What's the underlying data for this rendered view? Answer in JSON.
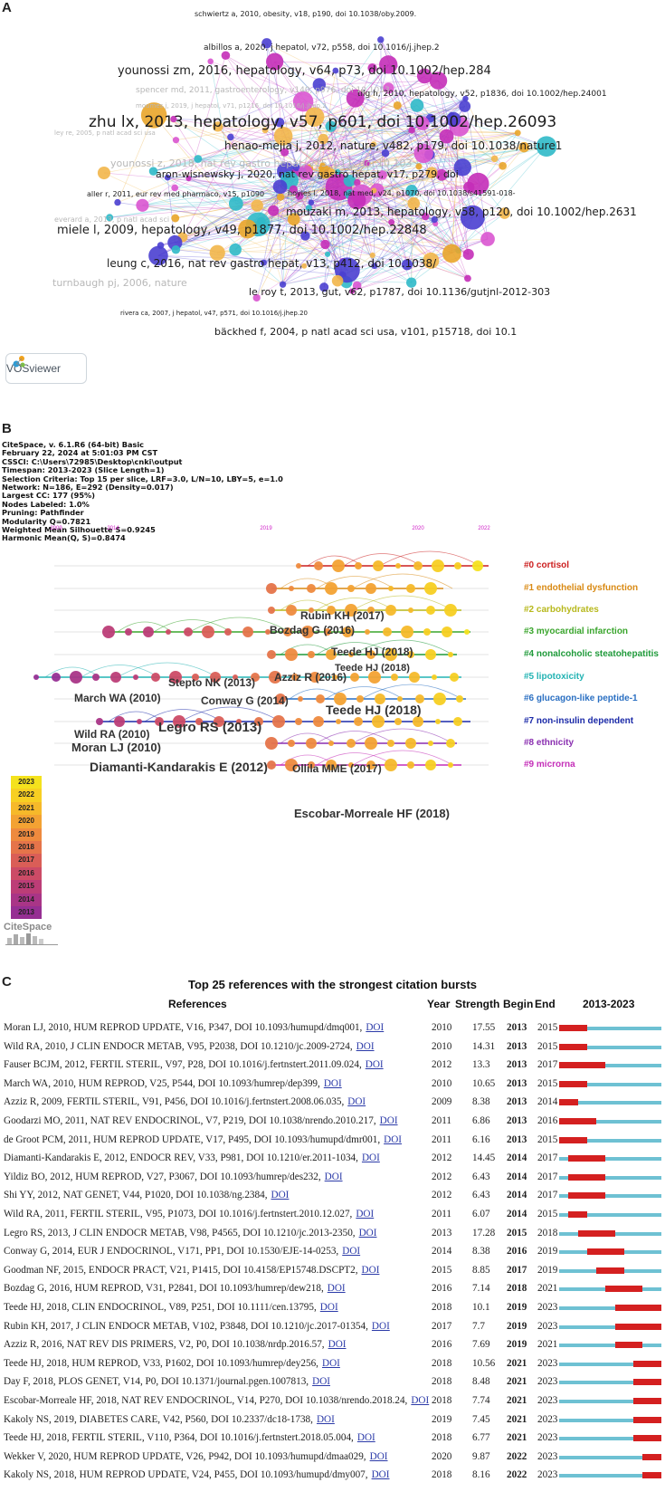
{
  "panel_a": {
    "letter": "A",
    "logo": "VOSviewer",
    "labels": [
      {
        "text": "schwiertz a, 2010, obesity, v18, p190, doi 10.1038/oby.2009.",
        "size": 8
      },
      {
        "text": "albillos a, 2020, j hepatol, v72, p558, doi 10.1016/j.jhep.2",
        "size": 9
      },
      {
        "text": "younossi zm, 2016, hepatology, v64, p73, doi 10.1002/hep.284",
        "size": 13
      },
      {
        "text": "tilg h, 2010, hepatology, v52, p1836, doi 10.1002/hep.24001",
        "size": 9
      },
      {
        "text": "spencer md, 2011, gastroenterology, v140, p976, doi 10.1053",
        "size": 9
      },
      {
        "text": "moumes j, 2019, j hepatol, v71, p1216, doi 10.1016/j.jhep.2",
        "size": 7
      },
      {
        "text": "zhu lx, 2013, hepatology, v57, p601, doi 10.1002/hep.26093",
        "size": 17
      },
      {
        "text": "ley re, 2005, p natl acad sci usa",
        "size": 7
      },
      {
        "text": "henao-mejia j, 2012, nature, v482, p179, doi 10.1038/nature1",
        "size": 12
      },
      {
        "text": "younossi z, 2018, nat rev gastro hepat, v15, p11, doi 10.103",
        "size": 11
      },
      {
        "text": "aron-wisnewsky j, 2020, nat rev gastro hepat, v17, p279, doi",
        "size": 11
      },
      {
        "text": "aller r, 2011, eur rev med pharmaco, v15, p1090",
        "size": 8
      },
      {
        "text": "hoyles l, 2018, nat med, v24, p1070, doi 10.1038/s41591-018-",
        "size": 8
      },
      {
        "text": "mouzaki m, 2013, hepatology, v58, p120, doi 10.1002/hep.2631",
        "size": 12
      },
      {
        "text": "everard a, 2013, p natl acad sci",
        "size": 8
      },
      {
        "text": "miele l, 2009, hepatology, v49, p1877, doi 10.1002/hep.22848",
        "size": 13
      },
      {
        "text": "leung c, 2016, nat rev gastro hepat, v13, p412, doi 10.1038/",
        "size": 12
      },
      {
        "text": "turnbaugh pj, 2006, nature",
        "size": 11
      },
      {
        "text": "le roy t, 2013, gut, v62, p1787, doi 10.1136/gutjnl-2012-303",
        "size": 11
      },
      {
        "text": "rivera ca, 2007, j hepatol, v47, p571, doi 10.1016/j.jhep.20",
        "size": 7
      },
      {
        "text": "bäckhed f, 2004, p natl acad sci usa, v101, p15718, doi 10.1",
        "size": 11
      }
    ]
  },
  "panel_b": {
    "letter": "B",
    "info_lines": [
      "CiteSpace, v. 6.1.R6 (64-bit) Basic",
      "February 22, 2024 at 5:01:03 PM CST",
      "CSSCI: C:\\Users\\72985\\Desktop\\cnki\\output",
      "Timespan: 2013-2023 (Slice Length=1)",
      "Selection Criteria: Top 15 per slice, LRF=3.0, L/N=10, LBY=5, e=1.0",
      "Network: N=186, E=292 (Density=0.017)",
      "Largest CC: 177 (95%)",
      "Nodes Labeled: 1.0%",
      "Pruning: Pathfinder",
      "Modularity Q=0.7821",
      "Weighted Mean Silhouette S=0.9245",
      "Harmonic Mean(Q, S)=0.8474"
    ],
    "axis_years": [
      "2009",
      "2014",
      "2019",
      "2020",
      "2022"
    ],
    "clusters": [
      {
        "label": "#0 cortisol",
        "color": "#cc1f1f"
      },
      {
        "label": "#1 endothelial dysfunction",
        "color": "#d98a14"
      },
      {
        "label": "#2 carbohydrates",
        "color": "#b7b81c"
      },
      {
        "label": "#3 myocardial infarction",
        "color": "#3aa52d"
      },
      {
        "label": "#4 nonalcoholic steatohepatitis",
        "color": "#1f9a3a"
      },
      {
        "label": "#5 lipotoxicity",
        "color": "#23b3b3"
      },
      {
        "label": "#6 glucagon-like peptide-1",
        "color": "#2a6fc2"
      },
      {
        "label": "#7 non-insulin    dependent",
        "color": "#1b2aa8"
      },
      {
        "label": "#8 ethnicity",
        "color": "#8a2fb0"
      },
      {
        "label": "#9 microrna",
        "color": "#c42eb8"
      }
    ],
    "node_labels": [
      {
        "text": "Rubin KH (2017)",
        "size": 12
      },
      {
        "text": "Bozdag G (2016)",
        "size": 12
      },
      {
        "text": "Teede HJ (2018)",
        "size": 12
      },
      {
        "text": "Teede HJ (2018)",
        "size": 11
      },
      {
        "text": "Azziz R (2016)",
        "size": 12
      },
      {
        "text": "Stepto NK (2013)",
        "size": 12
      },
      {
        "text": "March WA (2010)",
        "size": 12
      },
      {
        "text": "Conway G (2014)",
        "size": 12
      },
      {
        "text": "Teede HJ (2018)",
        "size": 14
      },
      {
        "text": "Wild RA (2010)",
        "size": 12
      },
      {
        "text": "Legro RS (2013)",
        "size": 15
      },
      {
        "text": "Moran LJ (2010)",
        "size": 13
      },
      {
        "text": "Diamanti-Kandarakis E (2012)",
        "size": 14
      },
      {
        "text": "Ollila MME (2017)",
        "size": 12
      },
      {
        "text": "Escobar-Morreale HF (2018)",
        "size": 13
      }
    ],
    "year_legend": [
      "2023",
      "2022",
      "2021",
      "2020",
      "2019",
      "2018",
      "2017",
      "2016",
      "2015",
      "2014",
      "2013"
    ],
    "year_colors": [
      "#f4e21d",
      "#f7cf22",
      "#f6b92a",
      "#f3a233",
      "#ee8a3e",
      "#e5744a",
      "#da5e57",
      "#cc4b66",
      "#bc3d77",
      "#a93587",
      "#962f93"
    ],
    "logo": "CiteSpace"
  },
  "panel_c": {
    "letter": "C",
    "title": "Top 25 references with the strongest citation bursts",
    "headers": {
      "references": "References",
      "year": "Year",
      "strength": "Strength",
      "begin": "Begin",
      "end": "End",
      "range": "2013-2023"
    },
    "range_start": 2013,
    "range_end": 2023,
    "doi_text": "DOI",
    "rows": [
      {
        "ref": "Moran LJ, 2010, HUM REPROD UPDATE, V16, P347, DOI 10.1093/humupd/dmq001,",
        "year": "2010",
        "strength": "17.55",
        "begin": "2013",
        "end": "2015"
      },
      {
        "ref": "Wild RA, 2010, J CLIN ENDOCR METAB, V95, P2038, DOI 10.1210/jc.2009-2724,",
        "year": "2010",
        "strength": "14.31",
        "begin": "2013",
        "end": "2015"
      },
      {
        "ref": "Fauser BCJM, 2012, FERTIL STERIL, V97, P28, DOI 10.1016/j.fertnstert.2011.09.024,",
        "year": "2012",
        "strength": "13.3",
        "begin": "2013",
        "end": "2017"
      },
      {
        "ref": "March WA, 2010, HUM REPROD, V25, P544, DOI 10.1093/humrep/dep399,",
        "year": "2010",
        "strength": "10.65",
        "begin": "2013",
        "end": "2015"
      },
      {
        "ref": "Azziz R, 2009, FERTIL STERIL, V91, P456, DOI 10.1016/j.fertnstert.2008.06.035,",
        "year": "2009",
        "strength": "8.38",
        "begin": "2013",
        "end": "2014"
      },
      {
        "ref": "Goodarzi MO, 2011, NAT REV ENDOCRINOL, V7, P219, DOI 10.1038/nrendo.2010.217,",
        "year": "2011",
        "strength": "6.86",
        "begin": "2013",
        "end": "2016"
      },
      {
        "ref": "de Groot PCM, 2011, HUM REPROD UPDATE, V17, P495, DOI 10.1093/humupd/dmr001,",
        "year": "2011",
        "strength": "6.16",
        "begin": "2013",
        "end": "2015"
      },
      {
        "ref": "Diamanti-Kandarakis E, 2012, ENDOCR REV, V33, P981, DOI 10.1210/er.2011-1034,",
        "year": "2012",
        "strength": "14.45",
        "begin": "2014",
        "end": "2017"
      },
      {
        "ref": "Yildiz BO, 2012, HUM REPROD, V27, P3067, DOI 10.1093/humrep/des232,",
        "year": "2012",
        "strength": "6.43",
        "begin": "2014",
        "end": "2017"
      },
      {
        "ref": "Shi YY, 2012, NAT GENET, V44, P1020, DOI 10.1038/ng.2384,",
        "year": "2012",
        "strength": "6.43",
        "begin": "2014",
        "end": "2017"
      },
      {
        "ref": "Wild RA, 2011, FERTIL STERIL, V95, P1073, DOI 10.1016/j.fertnstert.2010.12.027,",
        "year": "2011",
        "strength": "6.07",
        "begin": "2014",
        "end": "2015"
      },
      {
        "ref": "Legro RS, 2013, J CLIN ENDOCR METAB, V98, P4565, DOI 10.1210/jc.2013-2350,",
        "year": "2013",
        "strength": "17.28",
        "begin": "2015",
        "end": "2018"
      },
      {
        "ref": "Conway G, 2014, EUR J ENDOCRINOL, V171, PP1, DOI 10.1530/EJE-14-0253,",
        "year": "2014",
        "strength": "8.38",
        "begin": "2016",
        "end": "2019"
      },
      {
        "ref": "Goodman NF, 2015, ENDOCR PRACT, V21, P1415, DOI 10.4158/EP15748.DSCPT2,",
        "year": "2015",
        "strength": "8.85",
        "begin": "2017",
        "end": "2019"
      },
      {
        "ref": "Bozdag G, 2016, HUM REPROD, V31, P2841, DOI 10.1093/humrep/dew218,",
        "year": "2016",
        "strength": "7.14",
        "begin": "2018",
        "end": "2021"
      },
      {
        "ref": "Teede HJ, 2018, CLIN ENDOCRINOL, V89, P251, DOI 10.1111/cen.13795,",
        "year": "2018",
        "strength": "10.1",
        "begin": "2019",
        "end": "2023"
      },
      {
        "ref": "Rubin KH, 2017, J CLIN ENDOCR METAB, V102, P3848, DOI 10.1210/jc.2017-01354,",
        "year": "2017",
        "strength": "7.7",
        "begin": "2019",
        "end": "2023"
      },
      {
        "ref": "Azziz R, 2016, NAT REV DIS PRIMERS, V2, P0, DOI 10.1038/nrdp.2016.57,",
        "year": "2016",
        "strength": "7.69",
        "begin": "2019",
        "end": "2021"
      },
      {
        "ref": "Teede HJ, 2018, HUM REPROD, V33, P1602, DOI 10.1093/humrep/dey256,",
        "year": "2018",
        "strength": "10.56",
        "begin": "2021",
        "end": "2023"
      },
      {
        "ref": "Day F, 2018, PLOS GENET, V14, P0, DOI 10.1371/journal.pgen.1007813,",
        "year": "2018",
        "strength": "8.48",
        "begin": "2021",
        "end": "2023"
      },
      {
        "ref": "Escobar-Morreale HF, 2018, NAT REV ENDOCRINOL, V14, P270, DOI 10.1038/nrendo.2018.24,",
        "year": "2018",
        "strength": "7.74",
        "begin": "2021",
        "end": "2023"
      },
      {
        "ref": "Kakoly NS, 2019, DIABETES CARE, V42, P560, DOI 10.2337/dc18-1738,",
        "year": "2019",
        "strength": "7.45",
        "begin": "2021",
        "end": "2023"
      },
      {
        "ref": "Teede HJ, 2018, FERTIL STERIL, V110, P364, DOI 10.1016/j.fertnstert.2018.05.004,",
        "year": "2018",
        "strength": "6.77",
        "begin": "2021",
        "end": "2023"
      },
      {
        "ref": "Wekker V, 2020, HUM REPROD UPDATE, V26, P942, DOI 10.1093/humupd/dmaa029,",
        "year": "2020",
        "strength": "9.87",
        "begin": "2022",
        "end": "2023"
      },
      {
        "ref": "Kakoly NS, 2018, HUM REPROD UPDATE, V24, P455, DOI 10.1093/humupd/dmy007,",
        "year": "2018",
        "strength": "8.16",
        "begin": "2022",
        "end": "2023"
      }
    ]
  }
}
